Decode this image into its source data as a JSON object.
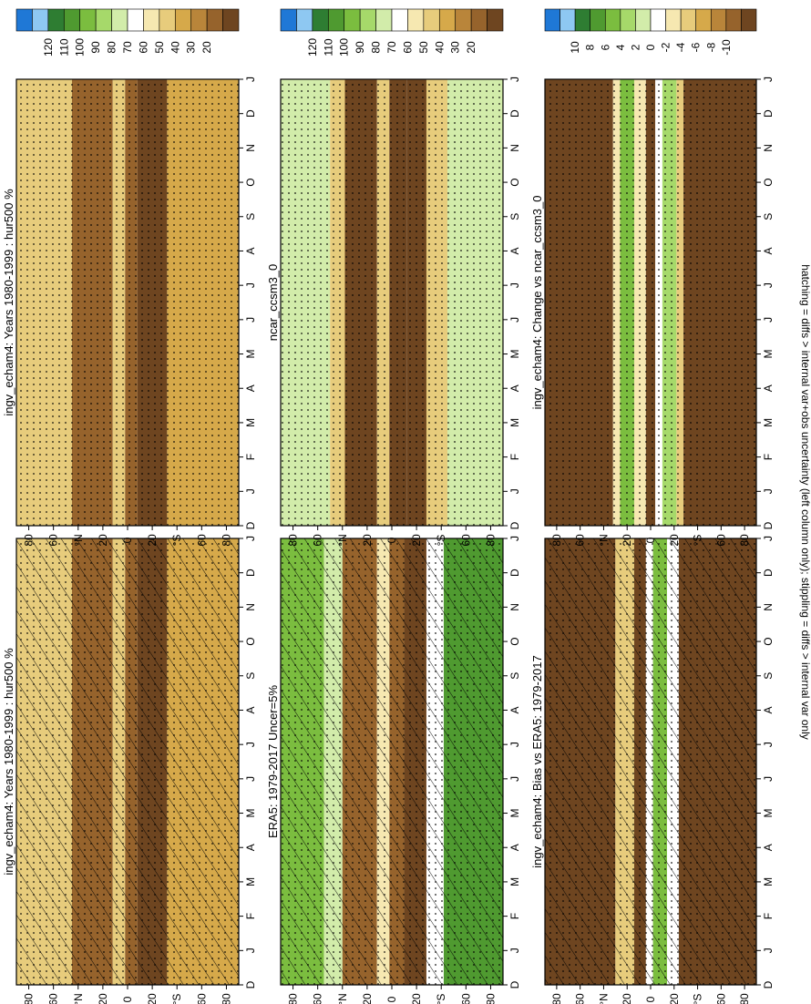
{
  "footnote": "hatching = diffs > internal var+obs uncertainty (left column only); stippling = diffs > internal var only",
  "months": [
    "D",
    "J",
    "F",
    "M",
    "A",
    "M",
    "J",
    "J",
    "A",
    "S",
    "O",
    "N",
    "D",
    "J"
  ],
  "lat_labels": [
    "80",
    "60",
    "°N",
    "20",
    "0",
    "20",
    "°S",
    "60",
    "80"
  ],
  "scales": {
    "abs": {
      "labels": [
        "120",
        "110",
        "100",
        "90",
        "80",
        "70",
        "60",
        "50",
        "40",
        "30",
        "20"
      ],
      "colors": [
        "#1f78d6",
        "#8ec8f2",
        "#2e7d32",
        "#4f9a30",
        "#7bbd3f",
        "#a6d96a",
        "#d2ecaa",
        "#ffffff",
        "#f6e8b1",
        "#e7cc7c",
        "#d6a94a",
        "#b9853a",
        "#96632c",
        "#6e4520"
      ]
    },
    "diff": {
      "labels": [
        "10",
        "8",
        "6",
        "4",
        "2",
        "0",
        "-2",
        "-4",
        "-6",
        "-8",
        "-10"
      ],
      "colors": [
        "#1f78d6",
        "#8ec8f2",
        "#2e7d32",
        "#4f9a30",
        "#7bbd3f",
        "#a6d96a",
        "#d2ecaa",
        "#ffffff",
        "#f6e8b1",
        "#e7cc7c",
        "#d6a94a",
        "#b9853a",
        "#96632c",
        "#6e4520"
      ]
    }
  },
  "chart_data": [
    {
      "type": "heatmap",
      "title": "ingv_echam4: Years 1980-1999 : hur500 %",
      "xlabel": "",
      "ylabel": "",
      "xticks": [
        "D",
        "J",
        "F",
        "M",
        "A",
        "M",
        "J",
        "J",
        "A",
        "S",
        "O",
        "N",
        "D",
        "J"
      ],
      "yticks": [
        "80",
        "60",
        "°N",
        "20",
        "0",
        "20",
        "°S",
        "60",
        "80"
      ],
      "clim": [
        20,
        120
      ],
      "units": "%",
      "hatching": true,
      "stippling": true,
      "bands": [
        {
          "lat": [
            90,
            45
          ],
          "value": 50
        },
        {
          "lat": [
            45,
            12
          ],
          "value": 28
        },
        {
          "lat": [
            12,
            2
          ],
          "value": 52
        },
        {
          "lat": [
            2,
            -8
          ],
          "value": 32
        },
        {
          "lat": [
            -8,
            -32
          ],
          "value": 22
        },
        {
          "lat": [
            -32,
            -90
          ],
          "value": 48
        }
      ]
    },
    {
      "type": "heatmap",
      "title": "ingv_echam4: Years 1980-1999 : hur500 %",
      "xlabel": "",
      "ylabel": "",
      "xticks": [
        "D",
        "J",
        "F",
        "M",
        "A",
        "M",
        "J",
        "J",
        "A",
        "S",
        "O",
        "N",
        "D",
        "J"
      ],
      "yticks": [
        "80",
        "60",
        "°N",
        "20",
        "0",
        "20",
        "°S",
        "60",
        "80"
      ],
      "clim": [
        20,
        120
      ],
      "units": "%",
      "hatching": false,
      "stippling": true,
      "bands": [
        {
          "lat": [
            90,
            45
          ],
          "value": 50
        },
        {
          "lat": [
            45,
            12
          ],
          "value": 28
        },
        {
          "lat": [
            12,
            2
          ],
          "value": 52
        },
        {
          "lat": [
            2,
            -8
          ],
          "value": 32
        },
        {
          "lat": [
            -8,
            -32
          ],
          "value": 22
        },
        {
          "lat": [
            -32,
            -90
          ],
          "value": 48
        }
      ]
    },
    {
      "type": "heatmap",
      "title": "ERA5: 1979-2017 Uncer=5%",
      "xlabel": "",
      "ylabel": "",
      "xticks": [
        "D",
        "J",
        "F",
        "M",
        "A",
        "M",
        "J",
        "J",
        "A",
        "S",
        "O",
        "N",
        "D",
        "J"
      ],
      "yticks": [
        "80",
        "60",
        "°N",
        "20",
        "0",
        "20",
        "°S",
        "60",
        "80"
      ],
      "clim": [
        20,
        120
      ],
      "units": "%",
      "hatching": true,
      "stippling": true,
      "bands": [
        {
          "lat": [
            90,
            55
          ],
          "value": 90
        },
        {
          "lat": [
            55,
            40
          ],
          "value": 72
        },
        {
          "lat": [
            40,
            12
          ],
          "value": 30
        },
        {
          "lat": [
            12,
            2
          ],
          "value": 58
        },
        {
          "lat": [
            2,
            -10
          ],
          "value": 28
        },
        {
          "lat": [
            -10,
            -28
          ],
          "value": 25
        },
        {
          "lat": [
            -28,
            -42
          ],
          "value": 68
        },
        {
          "lat": [
            -42,
            -90
          ],
          "value": 92
        }
      ]
    },
    {
      "type": "heatmap",
      "title": "ncar_ccsm3_0",
      "xlabel": "",
      "ylabel": "",
      "xticks": [
        "D",
        "J",
        "F",
        "M",
        "A",
        "M",
        "J",
        "J",
        "A",
        "S",
        "O",
        "N",
        "D",
        "J"
      ],
      "yticks": [
        "80",
        "60",
        "°N",
        "20",
        "0",
        "20",
        "°S",
        "60",
        "80"
      ],
      "clim": [
        20,
        120
      ],
      "units": "%",
      "hatching": false,
      "stippling": true,
      "bands": [
        {
          "lat": [
            90,
            50
          ],
          "value": 72
        },
        {
          "lat": [
            50,
            38
          ],
          "value": 55
        },
        {
          "lat": [
            38,
            12
          ],
          "value": 25
        },
        {
          "lat": [
            12,
            2
          ],
          "value": 55
        },
        {
          "lat": [
            2,
            -12
          ],
          "value": 25
        },
        {
          "lat": [
            -12,
            -28
          ],
          "value": 22
        },
        {
          "lat": [
            -28,
            -45
          ],
          "value": 55
        },
        {
          "lat": [
            -45,
            -90
          ],
          "value": 72
        }
      ]
    },
    {
      "type": "heatmap",
      "title": "ingv_echam4: Bias vs ERA5: 1979-2017",
      "xlabel": "",
      "ylabel": "",
      "xticks": [
        "D",
        "J",
        "F",
        "M",
        "A",
        "M",
        "J",
        "J",
        "A",
        "S",
        "O",
        "N",
        "D",
        "J"
      ],
      "yticks": [
        "80",
        "60",
        "°N",
        "20",
        "0",
        "20",
        "°S",
        "60",
        "80"
      ],
      "clim": [
        -10,
        10
      ],
      "units": "%",
      "hatching": true,
      "stippling": true,
      "bands": [
        {
          "lat": [
            90,
            30
          ],
          "value": -12
        },
        {
          "lat": [
            30,
            14
          ],
          "value": -4
        },
        {
          "lat": [
            14,
            4
          ],
          "value": -12
        },
        {
          "lat": [
            4,
            -2
          ],
          "value": 0
        },
        {
          "lat": [
            -2,
            -14
          ],
          "value": 3
        },
        {
          "lat": [
            -14,
            -24
          ],
          "value": 0
        },
        {
          "lat": [
            -24,
            -90
          ],
          "value": -12
        }
      ]
    },
    {
      "type": "heatmap",
      "title": "ingv_echam4: Change vs ncar_ccsm3_0",
      "xlabel": "",
      "ylabel": "",
      "xticks": [
        "D",
        "J",
        "F",
        "M",
        "A",
        "M",
        "J",
        "J",
        "A",
        "S",
        "O",
        "N",
        "D",
        "J"
      ],
      "yticks": [
        "80",
        "60",
        "°N",
        "20",
        "0",
        "20",
        "°S",
        "60",
        "80"
      ],
      "clim": [
        -10,
        10
      ],
      "units": "%",
      "hatching": false,
      "stippling": true,
      "bands": [
        {
          "lat": [
            90,
            32
          ],
          "value": -12
        },
        {
          "lat": [
            32,
            26
          ],
          "value": -2
        },
        {
          "lat": [
            26,
            14
          ],
          "value": 4
        },
        {
          "lat": [
            14,
            4
          ],
          "value": -2
        },
        {
          "lat": [
            4,
            -4
          ],
          "value": -12
        },
        {
          "lat": [
            -4,
            -10
          ],
          "value": 0
        },
        {
          "lat": [
            -10,
            -22
          ],
          "value": 2
        },
        {
          "lat": [
            -22,
            -28
          ],
          "value": -4
        },
        {
          "lat": [
            -28,
            -90
          ],
          "value": -12
        }
      ]
    }
  ]
}
